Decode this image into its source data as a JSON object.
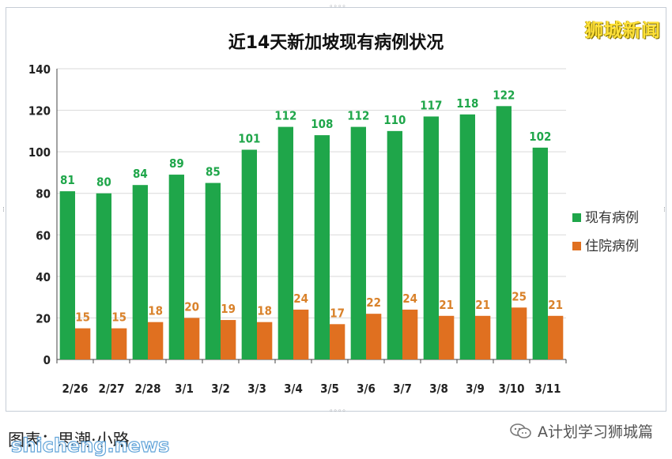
{
  "brand": "狮城新闻",
  "caption": "图表：思潮·小路",
  "watermark": "shicheng.news",
  "account": {
    "icon": "wechat-icon",
    "label": "A计划学习狮城篇"
  },
  "colors": {
    "current": "#1fa64a",
    "hospital": "#e07020",
    "label_current": "#1fa64a",
    "label_hospital": "#d9822b"
  },
  "chart_data": {
    "type": "bar",
    "title": "近14天新加坡现有病例状况",
    "categories": [
      "2/26",
      "2/27",
      "2/28",
      "3/1",
      "3/2",
      "3/3",
      "3/4",
      "3/5",
      "3/6",
      "3/7",
      "3/8",
      "3/9",
      "3/10",
      "3/11"
    ],
    "series": [
      {
        "name": "现有病例",
        "values": [
          81,
          80,
          84,
          89,
          85,
          101,
          112,
          108,
          112,
          110,
          117,
          118,
          122,
          102
        ]
      },
      {
        "name": "住院病例",
        "values": [
          15,
          15,
          18,
          20,
          19,
          18,
          24,
          17,
          22,
          24,
          21,
          21,
          25,
          21
        ]
      }
    ],
    "ylim": [
      0,
      140
    ],
    "yticks": [
      0,
      20,
      40,
      60,
      80,
      100,
      120,
      140
    ],
    "grid": true,
    "legend": "right",
    "data_labels": true
  }
}
